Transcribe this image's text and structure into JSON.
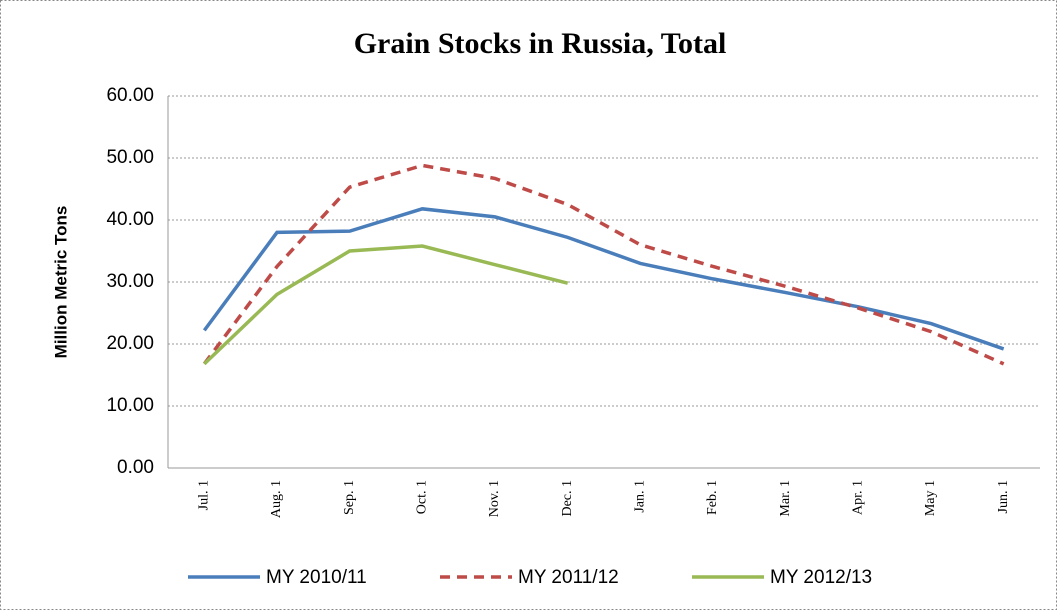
{
  "chart_data": {
    "type": "line",
    "title": "Grain Stocks in Russia, Total",
    "y_label": "Million Metric Tons",
    "categories": [
      "Jul. 1",
      "Aug. 1",
      "Sep. 1",
      "Oct. 1",
      "Nov. 1",
      "Dec. 1",
      "Jan. 1",
      "Feb. 1",
      "Mar. 1",
      "Apr. 1",
      "May 1",
      "Jun. 1"
    ],
    "series": [
      {
        "name": "MY 2010/11",
        "color": "#4a7ebb",
        "dash": false,
        "values": [
          22.2,
          38.0,
          38.2,
          41.8,
          40.5,
          37.2,
          33.0,
          30.5,
          28.3,
          26.0,
          23.3,
          19.2
        ]
      },
      {
        "name": "MY 2011/12",
        "color": "#be4b48",
        "dash": true,
        "values": [
          16.8,
          32.5,
          45.3,
          48.8,
          46.7,
          42.5,
          36.0,
          32.5,
          29.3,
          25.8,
          22.0,
          16.8
        ]
      },
      {
        "name": "MY 2012/13",
        "color": "#98b954",
        "dash": false,
        "values": [
          16.8,
          28.0,
          35.0,
          35.8,
          32.8,
          29.8,
          null,
          null,
          null,
          null,
          null,
          null
        ]
      }
    ],
    "ylim": [
      0,
      60
    ],
    "yticks": [
      {
        "value": 0,
        "label": "0.00"
      },
      {
        "value": 10,
        "label": "10.00"
      },
      {
        "value": 20,
        "label": "20.00"
      },
      {
        "value": 30,
        "label": "30.00"
      },
      {
        "value": 40,
        "label": "40.00"
      },
      {
        "value": 50,
        "label": "50.00"
      },
      {
        "value": 60,
        "label": "60.00"
      }
    ],
    "grid": true,
    "legend": "bottom"
  }
}
